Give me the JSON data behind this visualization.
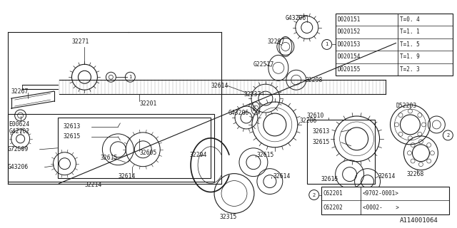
{
  "bg_color": "#ffffff",
  "line_color": "#1a1a1a",
  "part_number": "A114001064",
  "table1_rows": [
    [
      "D020151",
      "T=0. 4"
    ],
    [
      "D020152",
      "T=1. 1"
    ],
    [
      "D020153",
      "T=1. 5"
    ],
    [
      "D020154",
      "T=1. 9"
    ],
    [
      "D020155",
      "T=2. 3"
    ]
  ],
  "table2_rows": [
    [
      "C62201",
      "<9702-0001>"
    ],
    [
      "C62202",
      "<0002-    >"
    ]
  ]
}
